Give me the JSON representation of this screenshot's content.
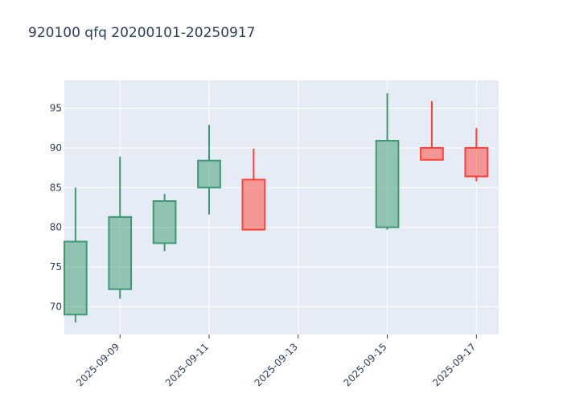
{
  "chart_data": {
    "type": "candlestick",
    "title": "920100 qfq 20200101-20250917",
    "xlabel": "",
    "ylabel": "",
    "x_range": [
      "2025-09-07T18:00",
      "2025-09-17T12:00"
    ],
    "y_range": [
      66.5,
      98.5
    ],
    "y_ticks": [
      70,
      75,
      80,
      85,
      90,
      95
    ],
    "x_ticks": [
      "2025-09-09",
      "2025-09-11",
      "2025-09-13",
      "2025-09-15",
      "2025-09-17"
    ],
    "grid": true,
    "colors": {
      "increasing_line": "#3d9970",
      "increasing_fill": "rgba(61,153,112,0.5)",
      "decreasing_line": "#ff4136",
      "decreasing_fill": "rgba(255,65,54,0.5)",
      "plot_bg": "#e5ecf6",
      "grid": "#ffffff",
      "text": "#2a3f5f"
    },
    "candles": [
      {
        "date": "2025-09-08",
        "open": 69.0,
        "high": 85.0,
        "low": 68.0,
        "close": 78.2
      },
      {
        "date": "2025-09-09",
        "open": 72.2,
        "high": 88.9,
        "low": 71.0,
        "close": 81.3
      },
      {
        "date": "2025-09-10",
        "open": 78.0,
        "high": 84.2,
        "low": 77.0,
        "close": 83.3
      },
      {
        "date": "2025-09-11",
        "open": 85.0,
        "high": 92.9,
        "low": 81.6,
        "close": 88.4
      },
      {
        "date": "2025-09-12",
        "open": 86.0,
        "high": 89.9,
        "low": 79.6,
        "close": 79.7
      },
      {
        "date": "2025-09-15",
        "open": 80.0,
        "high": 96.9,
        "low": 79.7,
        "close": 90.9
      },
      {
        "date": "2025-09-16",
        "open": 90.0,
        "high": 95.9,
        "low": 88.4,
        "close": 88.5
      },
      {
        "date": "2025-09-17",
        "open": 90.0,
        "high": 92.5,
        "low": 85.8,
        "close": 86.4
      }
    ]
  }
}
